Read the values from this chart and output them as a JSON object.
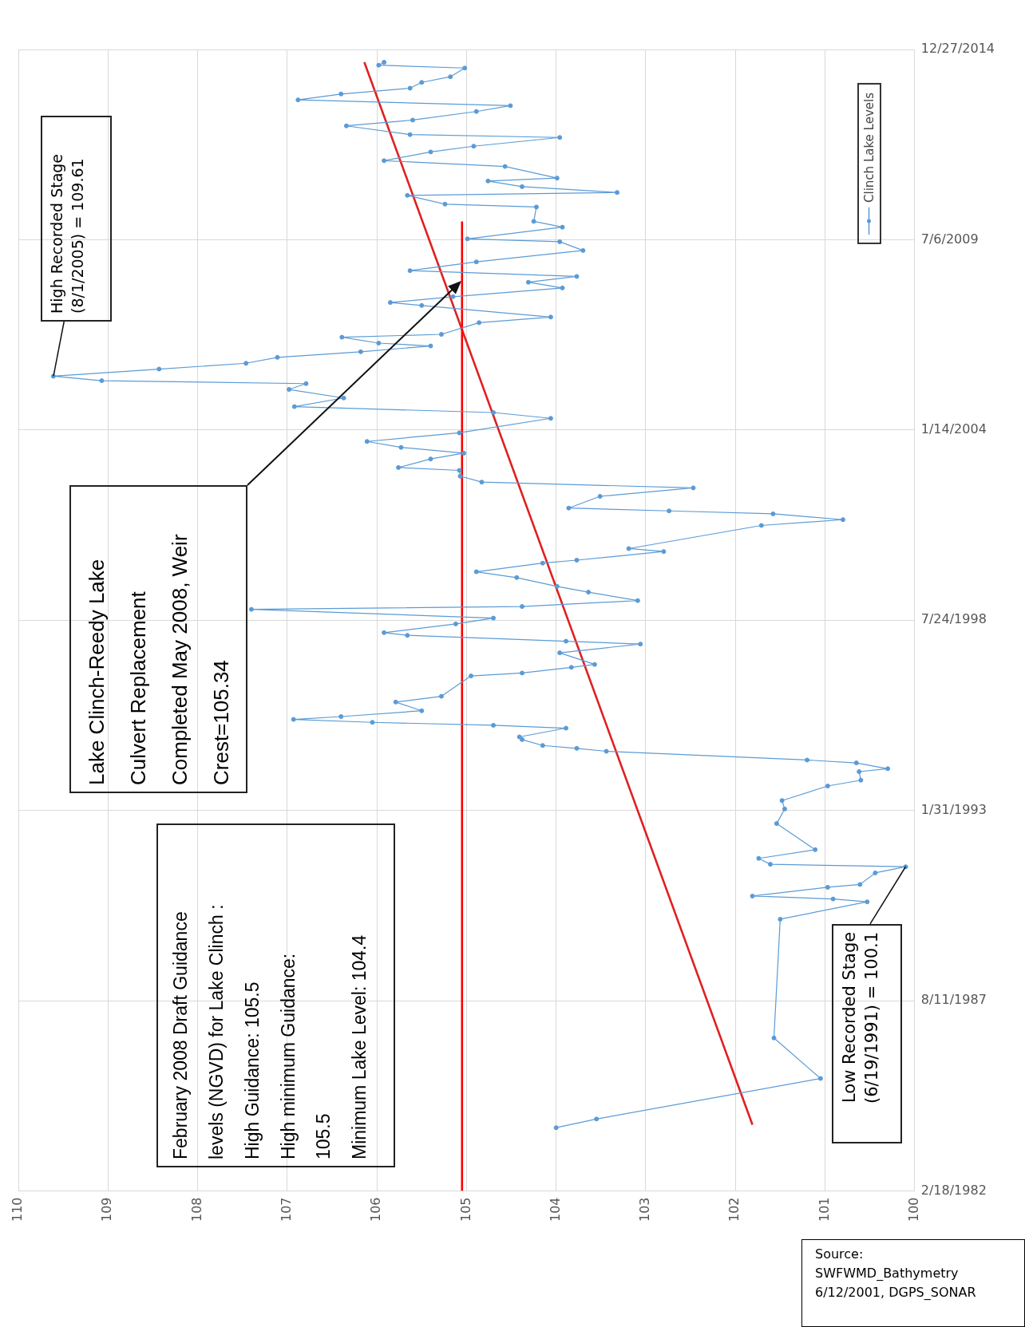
{
  "chart_data": {
    "type": "line",
    "orientation": "horizontal",
    "xlim": [
      110,
      100
    ],
    "xticks": [
      100,
      101,
      102,
      103,
      104,
      105,
      106,
      107,
      108,
      109,
      110
    ],
    "ylim": [
      "1982-02-18",
      "2014-12-27"
    ],
    "yticks": [
      {
        "value": "1982-02-18",
        "label": "2/18/1982"
      },
      {
        "value": "1987-08-11",
        "label": "8/11/1987"
      },
      {
        "value": "1993-01-31",
        "label": "1/31/1993"
      },
      {
        "value": "1998-07-24",
        "label": "7/24/1998"
      },
      {
        "value": "2004-01-14",
        "label": "1/14/2004"
      },
      {
        "value": "2009-07-06",
        "label": "7/6/2009"
      },
      {
        "value": "2014-12-27",
        "label": "12/27/2014"
      }
    ],
    "grid": true,
    "legend": "top right",
    "marker": "circle",
    "series": [
      {
        "name": "Clinch Lake Levels",
        "color": "#5b9bd5",
        "x": [
          "1983-12",
          "1984-03",
          "1985-05",
          "1986-07",
          "1989-12",
          "1990-06",
          "1990-07",
          "1990-08",
          "1990-11",
          "1990-12",
          "1991-04",
          "1991-06-19",
          "1991-07",
          "1991-09",
          "1991-12",
          "1992-09",
          "1993-02",
          "1993-05",
          "1993-10",
          "1993-12",
          "1994-03",
          "1994-04",
          "1994-06",
          "1994-07",
          "1994-10",
          "1994-11",
          "1994-12",
          "1995-02",
          "1995-03",
          "1995-06",
          "1995-07",
          "1995-08",
          "1995-09",
          "1995-10",
          "1995-12",
          "1996-03",
          "1996-05",
          "1996-12",
          "1997-01",
          "1997-03",
          "1997-04",
          "1997-08",
          "1997-11",
          "1997-12",
          "1998-02",
          "1998-03",
          "1998-06",
          "1998-08",
          "1998-11",
          "1998-12",
          "1999-02",
          "1999-05",
          "1999-07",
          "1999-10",
          "1999-12",
          "2000-03",
          "2000-04",
          "2000-07",
          "2000-08",
          "2001-04",
          "2001-06",
          "2001-08",
          "2001-09",
          "2001-10",
          "2002-02",
          "2002-05",
          "2002-07",
          "2002-09",
          "2002-11",
          "2002-12",
          "2003-03",
          "2003-05",
          "2003-07",
          "2003-09",
          "2003-12",
          "2004-05",
          "2004-07",
          "2004-09",
          "2004-12",
          "2005-03",
          "2005-05",
          "2005-06",
          "2005-08-01",
          "2005-10",
          "2005-12",
          "2006-02",
          "2006-04",
          "2006-06",
          "2006-07",
          "2006-09",
          "2006-10",
          "2007-02",
          "2007-04",
          "2007-08",
          "2007-09",
          "2007-11",
          "2008-02",
          "2008-04",
          "2008-06",
          "2008-08",
          "2008-11",
          "2009-03",
          "2009-06",
          "2009-07",
          "2009-11",
          "2010-01",
          "2010-06",
          "2010-07",
          "2010-10",
          "2010-11",
          "2011-01",
          "2011-03",
          "2011-04",
          "2011-08",
          "2011-10",
          "2012-01",
          "2012-03",
          "2012-06",
          "2012-07",
          "2012-10",
          "2012-12",
          "2013-03",
          "2013-05",
          "2013-07",
          "2013-09",
          "2013-11",
          "2014-01",
          "2014-03",
          "2014-06",
          "2014-07",
          "2014-08"
        ],
        "values": [
          104.0,
          103.55,
          101.05,
          101.57,
          101.5,
          100.53,
          100.91,
          101.81,
          100.97,
          100.61,
          100.44,
          100.1,
          101.61,
          101.74,
          101.11,
          101.54,
          101.45,
          101.48,
          100.97,
          100.6,
          100.62,
          100.3,
          100.65,
          101.2,
          103.44,
          103.77,
          104.15,
          104.38,
          104.41,
          103.89,
          104.7,
          106.05,
          106.93,
          106.4,
          105.5,
          105.79,
          105.28,
          104.95,
          104.38,
          103.83,
          103.57,
          103.96,
          103.06,
          103.89,
          105.66,
          105.92,
          105.12,
          104.7,
          107.4,
          104.38,
          103.09,
          103.64,
          103.99,
          104.44,
          104.89,
          104.15,
          103.77,
          102.8,
          103.19,
          101.71,
          100.8,
          101.58,
          102.74,
          103.86,
          103.51,
          102.47,
          104.83,
          105.07,
          105.08,
          105.76,
          105.4,
          105.03,
          105.73,
          106.11,
          105.08,
          104.06,
          104.7,
          106.92,
          106.37,
          106.98,
          106.79,
          109.07,
          109.61,
          108.43,
          107.46,
          107.11,
          106.18,
          105.4,
          105.98,
          106.39,
          105.28,
          104.86,
          104.06,
          105.5,
          105.85,
          105.15,
          103.93,
          104.31,
          103.77,
          105.63,
          104.89,
          103.7,
          103.96,
          104.99,
          103.93,
          104.25,
          104.22,
          105.24,
          105.66,
          103.32,
          104.38,
          104.76,
          103.99,
          104.57,
          105.92,
          105.4,
          104.92,
          103.96,
          105.63,
          106.34,
          105.6,
          104.89,
          104.51,
          106.88,
          106.4,
          105.63,
          105.5,
          105.18,
          105.02,
          105.98,
          105.92
        ]
      },
      {
        "type": "line",
        "color": "#ff0000",
        "marker": "none",
        "x": [
          "1982-02-18",
          "2010-01"
        ],
        "values": [
          105.05,
          105.05
        ]
      },
      {
        "type": "line",
        "color": "#e02020",
        "marker": "none",
        "x": [
          "1984-01",
          "2014-08"
        ],
        "values": [
          101.81,
          106.14
        ]
      }
    ],
    "annotations": [
      {
        "text": "High Recorded Stage\n(8/1/2005) = 109.61",
        "x": 109.61,
        "y": "2005-08-01"
      },
      "Lake Clinch-Reedy Lake\nCulvert Replacement\nCompleted May 2008, Weir\nCrest=105.34",
      "February 2008 Draft Guidance\nlevels (NGVD) for Lake Clinch :\nHigh Guidance: 105.5\nHigh minimum Guidance:\n105.5\nMinimum Lake Level: 104.4",
      {
        "text": "Low Recorded Stage\n(6/19/1991) = 100.1",
        "x": 100.1,
        "y": "1991-06-19"
      },
      "Source:\nSWFWMD_Bathymetry\n6/12/2001, DGPS_SONAR"
    ]
  }
}
